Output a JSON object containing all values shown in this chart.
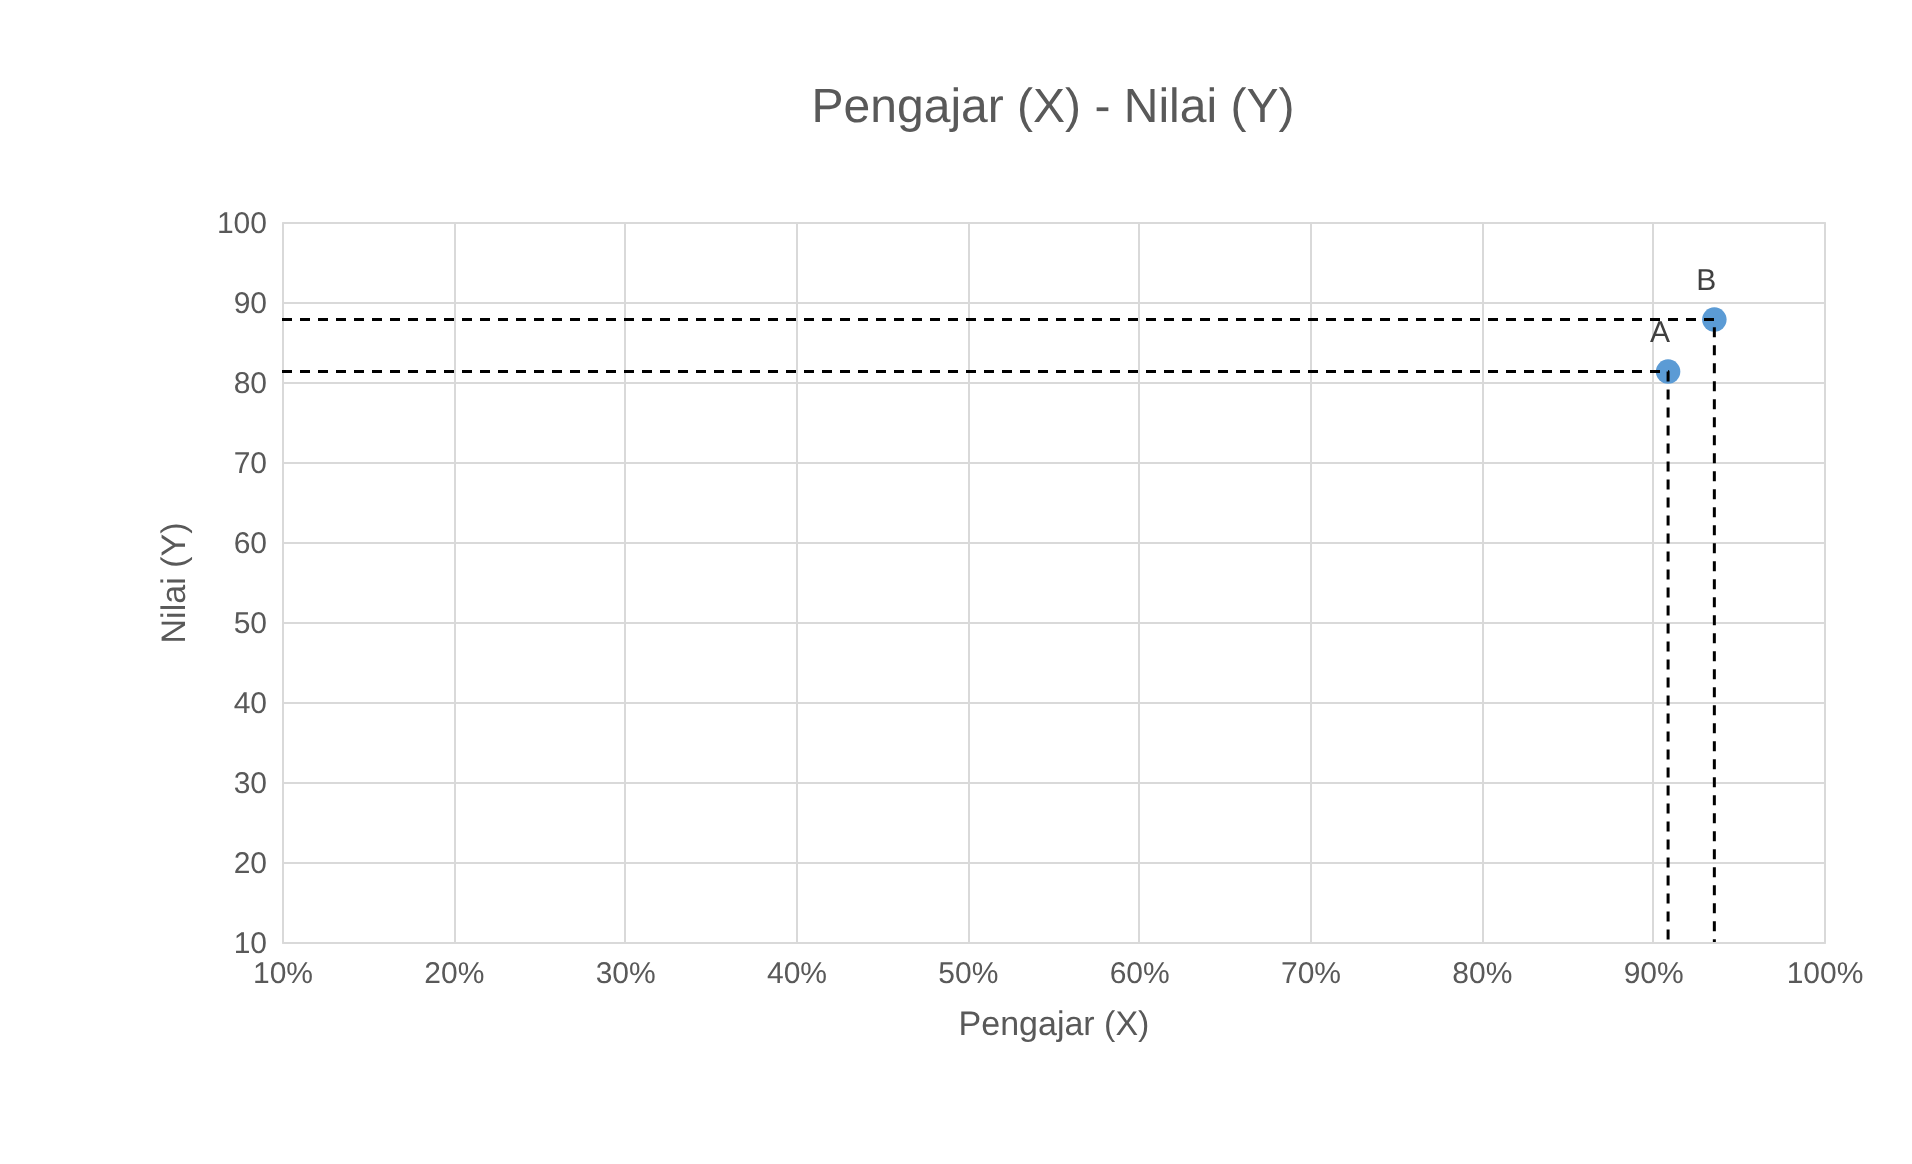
{
  "chart_data": {
    "type": "scatter",
    "title": "Pengajar (X) - Nilai (Y)",
    "xlabel": "Pengajar (X)",
    "ylabel": "Nilai (Y)",
    "series": [
      {
        "color": "#5b9bd5",
        "x": [
          90.9,
          93.6
        ],
        "values": [
          81.3,
          87.8
        ],
        "marker": "circle"
      },
      {
        "type": "line",
        "color": "#000000",
        "line_style": "dashed",
        "x": [
          10,
          90.9,
          90.9
        ],
        "values": [
          81.3,
          81.3,
          10
        ]
      },
      {
        "type": "line",
        "color": "#000000",
        "line_style": "dashed",
        "x": [
          10,
          93.6,
          93.6
        ],
        "values": [
          87.8,
          87.8,
          10
        ]
      }
    ],
    "annotations": [
      {
        "text": "A",
        "x": 90.9,
        "y": 81.3
      },
      {
        "text": "B",
        "x": 93.6,
        "y": 87.8
      }
    ],
    "xlim": [
      10,
      100
    ],
    "ylim": [
      10,
      100
    ],
    "xticks": [
      {
        "value": 10,
        "label": "10%"
      },
      {
        "value": 20,
        "label": "20%"
      },
      {
        "value": 30,
        "label": "30%"
      },
      {
        "value": 40,
        "label": "40%"
      },
      {
        "value": 50,
        "label": "50%"
      },
      {
        "value": 60,
        "label": "60%"
      },
      {
        "value": 70,
        "label": "70%"
      },
      {
        "value": 80,
        "label": "80%"
      },
      {
        "value": 90,
        "label": "90%"
      },
      {
        "value": 100,
        "label": "100%"
      }
    ],
    "yticks": [
      10,
      20,
      30,
      40,
      50,
      60,
      70,
      80,
      90,
      100
    ],
    "grid": true
  }
}
